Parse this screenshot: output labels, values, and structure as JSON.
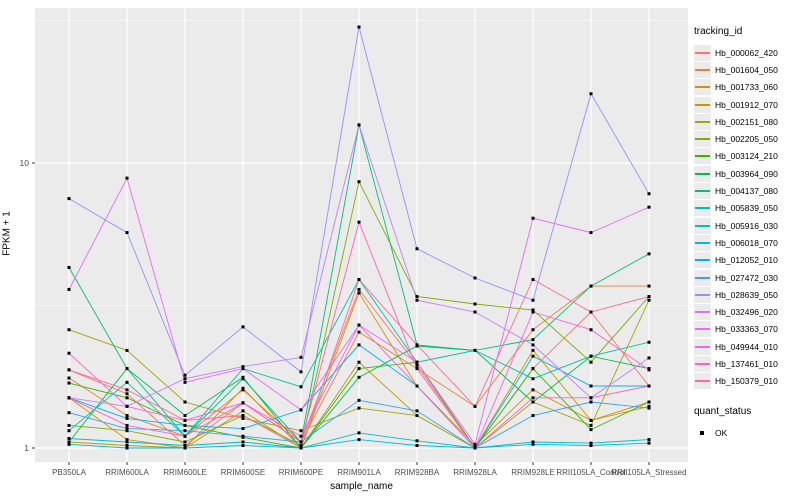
{
  "chart_data": {
    "type": "line",
    "title": "",
    "xlabel": "sample_name",
    "ylabel": "FPKM + 1",
    "y_scale": "log10",
    "ylim": [
      0.89,
      35
    ],
    "y_ticks": [
      1,
      10
    ],
    "grid": {
      "major_y": [
        1,
        10
      ],
      "minor_y": [
        3.162,
        31.623
      ],
      "grid_on": true
    },
    "panel_bg": "#ebebeb",
    "grid_color": "#ffffff",
    "point_color": "#000000",
    "legend_position": "right",
    "categories": [
      "PB350LA",
      "RRIM600LA",
      "RRIM600LE",
      "RRIM600SE",
      "RRIM600PE",
      "RRIM901LA",
      "RRIM928BA",
      "RRIM928LA",
      "RRIM928LE",
      "RRII105LA_Control",
      "RRII105LA_Stressed"
    ],
    "series": [
      {
        "name": "Hb_000062_420",
        "color": "#F8766D",
        "values": [
          1.88,
          1.55,
          1.02,
          1.44,
          1.05,
          3.6,
          1.95,
          1.0,
          1.9,
          3.0,
          1.65
        ]
      },
      {
        "name": "Hb_001604_050",
        "color": "#EA8331",
        "values": [
          1.76,
          1.3,
          1.1,
          1.6,
          1.05,
          2.55,
          1.9,
          1.4,
          2.6,
          3.7,
          3.7
        ]
      },
      {
        "name": "Hb_001733_060",
        "color": "#D89000",
        "values": [
          1.5,
          1.07,
          1.0,
          1.62,
          1.0,
          3.5,
          1.65,
          1.02,
          1.6,
          1.25,
          1.45
        ]
      },
      {
        "name": "Hb_001912_070",
        "color": "#C09B00",
        "values": [
          1.05,
          1.02,
          1.0,
          1.35,
          1.0,
          2.0,
          1.3,
          1.0,
          2.2,
          1.25,
          1.4
        ]
      },
      {
        "name": "Hb_002151_080",
        "color": "#A3A500",
        "values": [
          2.6,
          2.2,
          1.45,
          1.27,
          1.15,
          1.38,
          1.3,
          1.0,
          1.45,
          1.2,
          3.3
        ]
      },
      {
        "name": "Hb_002205_050",
        "color": "#7CAE00",
        "values": [
          1.2,
          1.15,
          1.05,
          1.3,
          1.02,
          8.6,
          3.4,
          3.2,
          3.05,
          2.0,
          3.4
        ]
      },
      {
        "name": "Hb_003124_210",
        "color": "#39B600",
        "values": [
          1.69,
          1.5,
          1.2,
          1.09,
          1.0,
          1.9,
          2.0,
          1.0,
          1.9,
          1.16,
          1.45
        ]
      },
      {
        "name": "Hb_003964_090",
        "color": "#00BB4E",
        "values": [
          1.05,
          1.9,
          1.3,
          1.77,
          1.0,
          1.77,
          2.28,
          2.2,
          1.45,
          2.1,
          1.9
        ]
      },
      {
        "name": "Hb_004137_080",
        "color": "#00BF7D",
        "values": [
          4.3,
          1.9,
          1.1,
          1.75,
          1.05,
          13.6,
          2.3,
          2.2,
          2.4,
          3.7,
          4.8
        ]
      },
      {
        "name": "Hb_005839_050",
        "color": "#00C1A3",
        "values": [
          1.15,
          1.7,
          1.1,
          1.9,
          1.64,
          3.9,
          2.0,
          2.2,
          1.75,
          2.1,
          2.35
        ]
      },
      {
        "name": "Hb_005916_030",
        "color": "#00BFC4",
        "values": [
          1.08,
          1.05,
          1.02,
          1.05,
          1.0,
          1.13,
          1.06,
          1.0,
          1.05,
          1.04,
          1.07
        ]
      },
      {
        "name": "Hb_006018_070",
        "color": "#00BAE0",
        "values": [
          1.03,
          1.0,
          1.0,
          1.02,
          1.0,
          1.07,
          1.02,
          1.0,
          1.03,
          1.02,
          1.04
        ]
      },
      {
        "name": "Hb_012052_010",
        "color": "#00B0F6",
        "values": [
          1.5,
          1.27,
          1.2,
          1.17,
          1.36,
          2.3,
          1.65,
          1.0,
          2.1,
          1.65,
          1.65
        ]
      },
      {
        "name": "Hb_027472_030",
        "color": "#35A2FF",
        "values": [
          1.33,
          1.17,
          1.15,
          1.1,
          1.05,
          1.47,
          1.35,
          1.0,
          1.3,
          1.45,
          1.38
        ]
      },
      {
        "name": "Hb_028639_050",
        "color": "#9590FF",
        "values": [
          7.5,
          5.7,
          1.8,
          2.66,
          1.85,
          30.0,
          5.0,
          3.95,
          3.3,
          17.5,
          7.8
        ]
      },
      {
        "name": "Hb_032496_020",
        "color": "#C77CFF",
        "values": [
          1.5,
          1.4,
          1.75,
          1.93,
          2.08,
          13.6,
          3.3,
          3.0,
          2.3,
          1.5,
          2.07
        ]
      },
      {
        "name": "Hb_033363_070",
        "color": "#E76BF3",
        "values": [
          3.6,
          8.85,
          1.7,
          1.9,
          1.36,
          2.7,
          2.0,
          1.03,
          6.4,
          5.7,
          7.0
        ]
      },
      {
        "name": "Hb_049944_010",
        "color": "#FA62DB",
        "values": [
          2.15,
          1.4,
          1.25,
          1.44,
          1.1,
          2.7,
          1.65,
          1.0,
          3.0,
          2.6,
          1.88
        ]
      },
      {
        "name": "Hb_137461_010",
        "color": "#FF62BC",
        "values": [
          1.5,
          1.2,
          1.1,
          1.44,
          1.05,
          6.2,
          1.9,
          1.0,
          1.5,
          1.5,
          1.65
        ]
      },
      {
        "name": "Hb_150379_010",
        "color": "#FF6A98",
        "values": [
          1.88,
          1.6,
          1.25,
          1.3,
          1.0,
          3.9,
          2.3,
          1.4,
          3.9,
          3.0,
          3.4
        ]
      }
    ]
  },
  "legend": {
    "color_title": "tracking_id",
    "shape_title": "quant_status",
    "shape_items": [
      {
        "label": "OK"
      }
    ]
  }
}
